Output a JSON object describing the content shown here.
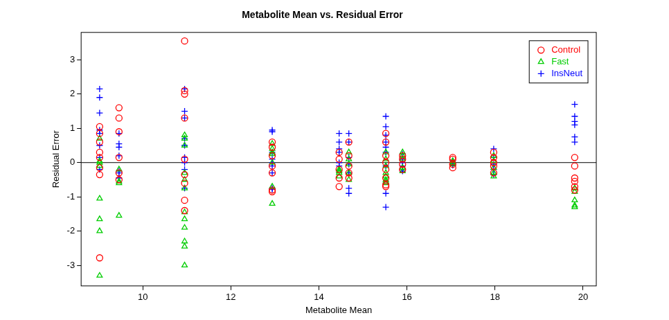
{
  "chart_data": {
    "type": "scatter",
    "title": "Metabolite Mean vs. Residual Error",
    "x_label": "Metabolite Mean",
    "y_label": "Residual Error",
    "xlim": [
      8.6,
      20.3
    ],
    "xticks": [
      10,
      12,
      14,
      16,
      18,
      20
    ],
    "ylim": [
      -3.6,
      3.8
    ],
    "yticks": [
      -3,
      -2,
      -1,
      0,
      1,
      2,
      3
    ],
    "hline": 0,
    "grid": false,
    "legend": "top-right",
    "series": [
      {
        "name": "Control",
        "color": "#ff0000",
        "marker": "circle",
        "x": [
          9.02,
          9.02,
          9.02,
          9.02,
          9.02,
          9.02,
          9.02,
          9.02,
          9.46,
          9.46,
          9.46,
          9.46,
          9.46,
          9.46,
          10.95,
          10.95,
          10.95,
          10.95,
          10.95,
          10.95,
          10.95,
          10.95,
          10.95,
          12.94,
          12.94,
          12.94,
          12.94,
          12.94,
          12.94,
          12.94,
          14.46,
          14.46,
          14.46,
          14.46,
          14.46,
          14.68,
          14.68,
          14.68,
          14.68,
          14.68,
          15.52,
          15.52,
          15.52,
          15.52,
          15.52,
          15.52,
          15.52,
          15.52,
          15.9,
          15.9,
          15.9,
          15.9,
          17.04,
          17.04,
          17.04,
          17.04,
          17.97,
          17.97,
          17.97,
          17.97,
          17.97,
          19.81,
          19.81,
          19.81,
          19.81,
          19.81,
          19.81
        ],
        "values": [
          1.05,
          0.85,
          0.3,
          0.15,
          -0.15,
          -0.35,
          -2.78,
          0.6,
          1.6,
          1.3,
          0.9,
          -0.3,
          -0.5,
          0.15,
          3.55,
          2.1,
          2.0,
          1.3,
          -0.35,
          -0.6,
          -1.1,
          -1.4,
          0.1,
          0.6,
          0.45,
          0.2,
          -0.1,
          -0.3,
          -0.8,
          -0.85,
          0.1,
          -0.2,
          -0.45,
          -0.7,
          0.3,
          0.6,
          0.2,
          -0.1,
          -0.3,
          -0.45,
          0.85,
          0.6,
          0.2,
          0,
          -0.2,
          -0.45,
          -0.65,
          -0.7,
          0.1,
          -0.05,
          -0.2,
          0.2,
          0.15,
          0.1,
          -0.05,
          -0.15,
          0.3,
          0.15,
          0,
          -0.1,
          -0.3,
          0.15,
          -0.1,
          -0.45,
          -0.55,
          -0.7,
          -0.8
        ]
      },
      {
        "name": "Fast",
        "color": "#00cd00",
        "marker": "triangle",
        "x": [
          9.02,
          9.02,
          9.02,
          9.02,
          9.02,
          9.02,
          9.02,
          9.02,
          9.46,
          9.46,
          9.46,
          9.46,
          10.95,
          10.95,
          10.95,
          10.95,
          10.95,
          10.95,
          10.95,
          10.95,
          10.95,
          10.95,
          10.95,
          10.95,
          12.94,
          12.94,
          12.94,
          12.94,
          12.94,
          12.94,
          12.94,
          14.46,
          14.46,
          14.46,
          14.46,
          14.68,
          14.68,
          14.68,
          14.68,
          14.68,
          15.52,
          15.52,
          15.52,
          15.52,
          15.52,
          15.52,
          15.52,
          15.52,
          15.9,
          15.9,
          15.9,
          15.9,
          15.9,
          17.04,
          17.04,
          17.04,
          17.97,
          17.97,
          17.97,
          17.97,
          17.97,
          19.81,
          19.81,
          19.81,
          19.81,
          19.81
        ],
        "values": [
          0.7,
          0,
          -0.1,
          -1.05,
          -1.65,
          -2.0,
          -3.3,
          0.05,
          -0.55,
          -0.6,
          -1.55,
          -0.2,
          0.8,
          0.7,
          0.5,
          -0.3,
          -0.5,
          -0.75,
          -1.45,
          -1.65,
          -1.9,
          -2.3,
          -2.45,
          -3.0,
          0.55,
          0.4,
          0.3,
          0.25,
          0,
          -0.7,
          -1.2,
          -0.2,
          -0.3,
          -0.4,
          -0.25,
          0.3,
          0.1,
          -0.05,
          -0.3,
          -0.5,
          0.1,
          -0.1,
          -0.3,
          -0.4,
          -0.5,
          -0.55,
          -0.6,
          0.3,
          0.3,
          0.2,
          0.1,
          -0.15,
          -0.25,
          0.05,
          0,
          -0.05,
          0.2,
          0.05,
          -0.15,
          -0.3,
          -0.4,
          -0.75,
          -0.85,
          -1.1,
          -1.25,
          -1.3
        ]
      },
      {
        "name": "InsNeut",
        "color": "#0000ff",
        "marker": "cross",
        "x": [
          9.02,
          9.02,
          9.02,
          9.02,
          9.02,
          9.02,
          9.02,
          9.02,
          9.46,
          9.46,
          9.46,
          9.46,
          9.46,
          9.46,
          9.46,
          10.95,
          10.95,
          10.95,
          10.95,
          10.95,
          10.95,
          10.95,
          10.95,
          10.95,
          12.94,
          12.94,
          12.94,
          12.94,
          12.94,
          12.94,
          12.94,
          12.94,
          12.94,
          14.46,
          14.46,
          14.46,
          14.46,
          14.46,
          14.46,
          14.68,
          14.68,
          14.68,
          14.68,
          14.68,
          14.68,
          14.68,
          15.52,
          15.52,
          15.52,
          15.52,
          15.52,
          15.52,
          15.52,
          15.52,
          15.52,
          15.9,
          15.9,
          15.9,
          15.9,
          15.9,
          15.9,
          17.04,
          17.04,
          17.04,
          17.04,
          17.97,
          17.97,
          17.97,
          17.97,
          17.97,
          19.81,
          19.81,
          19.81,
          19.81,
          19.81,
          19.81
        ],
        "values": [
          2.15,
          1.9,
          1.45,
          0.95,
          0.85,
          0.5,
          0.15,
          -0.2,
          0.85,
          0.55,
          0.45,
          0.2,
          -0.25,
          -0.3,
          -0.45,
          2.15,
          1.5,
          1.3,
          0.7,
          0.5,
          0.15,
          0,
          -0.2,
          -0.75,
          0.95,
          0.9,
          0.3,
          0.1,
          0,
          -0.1,
          -0.3,
          -0.75,
          -0.78,
          0.85,
          0.6,
          0.4,
          0.3,
          0,
          -0.1,
          0.85,
          0.6,
          0.15,
          -0.05,
          -0.3,
          -0.75,
          -0.9,
          1.35,
          1.05,
          0.8,
          0.6,
          0.45,
          0.3,
          -0.1,
          -0.9,
          -1.3,
          0.25,
          0.1,
          0,
          -0.1,
          -0.2,
          -0.25,
          0.05,
          0,
          -0.03,
          -0.08,
          0.4,
          0.15,
          -0.05,
          -0.2,
          -0.35,
          1.7,
          1.35,
          1.2,
          1.1,
          0.75,
          0.6
        ]
      }
    ]
  }
}
